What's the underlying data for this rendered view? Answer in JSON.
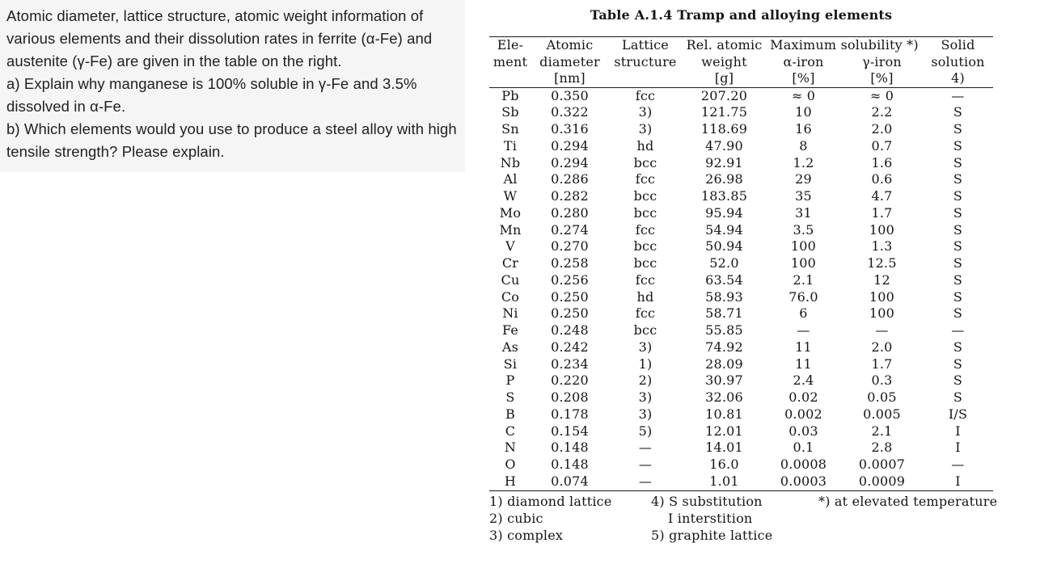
{
  "question_panel": {
    "intro": "Atomic diameter, lattice structure, atomic weight information of various elements and their dissolution rates in ferrite (α-Fe) and austenite (γ-Fe) are given in the table on the right.",
    "part_a": "a) Explain why manganese is 100% soluble in γ-Fe and 3.5% dissolved in α-Fe.",
    "part_b": "b) Which elements would you use to produce a steel alloy with high tensile strength? Please explain."
  },
  "table": {
    "title": "Table A.1.4 Tramp and alloying elements",
    "header": {
      "element_l1": "Ele-",
      "element_l2": "ment",
      "diameter_l1": "Atomic",
      "diameter_l2": "diameter",
      "diameter_l3": "[nm]",
      "lattice_l1": "Lattice",
      "lattice_l2": "structure",
      "weight_l1": "Rel. atomic",
      "weight_l2": "weight",
      "weight_l3": "[g]",
      "solubility_span": "Maximum solubility *)",
      "alpha_iron": "α-iron",
      "gamma_iron": "γ-iron",
      "alpha_unit": "[%]",
      "gamma_unit": "[%]",
      "solid_l1": "Solid",
      "solid_l2": "solution",
      "solid_l3": "4)"
    },
    "rows": [
      [
        "Pb",
        "0.350",
        "fcc",
        "207.20",
        "≈ 0",
        "≈ 0",
        "—"
      ],
      [
        "Sb",
        "0.322",
        "3)",
        "121.75",
        "10",
        "2.2",
        "S"
      ],
      [
        "Sn",
        "0.316",
        "3)",
        "118.69",
        "16",
        "2.0",
        "S"
      ],
      [
        "Ti",
        "0.294",
        "hd",
        "47.90",
        "8",
        "0.7",
        "S"
      ],
      [
        "Nb",
        "0.294",
        "bcc",
        "92.91",
        "1.2",
        "1.6",
        "S"
      ],
      [
        "Al",
        "0.286",
        "fcc",
        "26.98",
        "29",
        "0.6",
        "S"
      ],
      [
        "W",
        "0.282",
        "bcc",
        "183.85",
        "35",
        "4.7",
        "S"
      ],
      [
        "Mo",
        "0.280",
        "bcc",
        "95.94",
        "31",
        "1.7",
        "S"
      ],
      [
        "Mn",
        "0.274",
        "fcc",
        "54.94",
        "3.5",
        "100",
        "S"
      ],
      [
        "V",
        "0.270",
        "bcc",
        "50.94",
        "100",
        "1.3",
        "S"
      ],
      [
        "Cr",
        "0.258",
        "bcc",
        "52.0",
        "100",
        "12.5",
        "S"
      ],
      [
        "Cu",
        "0.256",
        "fcc",
        "63.54",
        "2.1",
        "12",
        "S"
      ],
      [
        "Co",
        "0.250",
        "hd",
        "58.93",
        "76.0",
        "100",
        "S"
      ],
      [
        "Ni",
        "0.250",
        "fcc",
        "58.71",
        "6",
        "100",
        "S"
      ],
      [
        "Fe",
        "0.248",
        "bcc",
        "55.85",
        "—",
        "—",
        "—"
      ],
      [
        "As",
        "0.242",
        "3)",
        "74.92",
        "11",
        "2.0",
        "S"
      ],
      [
        "Si",
        "0.234",
        "1)",
        "28.09",
        "11",
        "1.7",
        "S"
      ],
      [
        "P",
        "0.220",
        "2)",
        "30.97",
        "2.4",
        "0.3",
        "S"
      ],
      [
        "S",
        "0.208",
        "3)",
        "32.06",
        "0.02",
        "0.05",
        "S"
      ],
      [
        "B",
        "0.178",
        "3)",
        "10.81",
        "0.002",
        "0.005",
        "I/S"
      ],
      [
        "C",
        "0.154",
        "5)",
        "12.01",
        "0.03",
        "2.1",
        "I"
      ],
      [
        "N",
        "0.148",
        "—",
        "14.01",
        "0.1",
        "2.8",
        "I"
      ],
      [
        "O",
        "0.148",
        "—",
        "16.0",
        "0.0008",
        "0.0007",
        "—"
      ],
      [
        "H",
        "0.074",
        "—",
        "1.01",
        "0.0003",
        "0.0009",
        "I"
      ]
    ],
    "footnotes": {
      "col1": [
        "1) diamond lattice",
        "2) cubic",
        "3) complex"
      ],
      "col2": [
        "4) S substitution",
        "I interstition",
        "5) graphite lattice"
      ],
      "col3": [
        "*) at elevated temperature",
        "",
        ""
      ]
    }
  }
}
